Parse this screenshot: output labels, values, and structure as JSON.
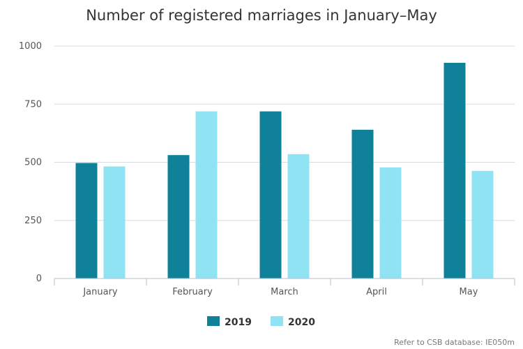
{
  "chart_data": {
    "type": "bar",
    "title": "Number of registered marriages in January–May",
    "categories": [
      "January",
      "February",
      "March",
      "April",
      "May"
    ],
    "series": [
      {
        "name": "2019",
        "values": [
          497,
          531,
          719,
          640,
          928
        ],
        "color": "#0f8199"
      },
      {
        "name": "2020",
        "values": [
          482,
          719,
          535,
          478,
          463
        ],
        "color": "#8fe3f3"
      }
    ],
    "yticks": [
      "0",
      "250",
      "500",
      "750",
      "1000"
    ],
    "ylim": [
      0,
      1000
    ],
    "grid": true,
    "legend_position": "bottom-center",
    "xlabel": "",
    "ylabel": ""
  },
  "source_note": "Refer to CSB database: IE050m"
}
